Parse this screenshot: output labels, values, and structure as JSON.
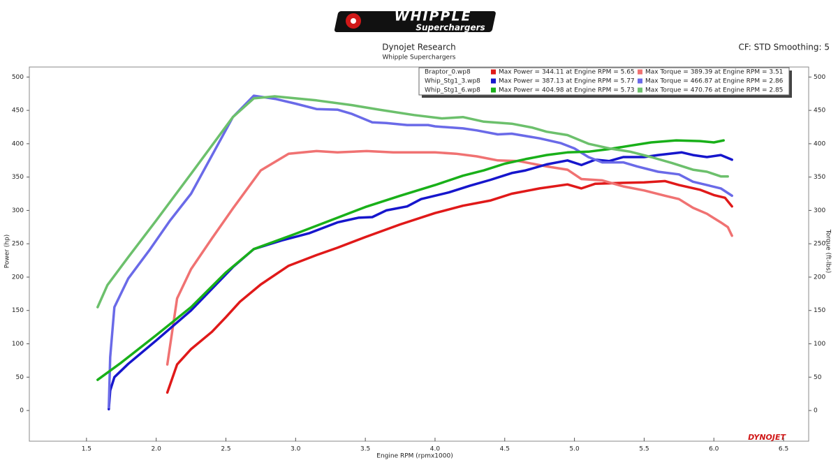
{
  "chart_data": {
    "type": "line",
    "brand": "WHIPPLE",
    "brand_sub": "Superchargers",
    "title": "Dynojet Research",
    "subtitle": "Whipple Superchargers",
    "corner_note": "CF: STD Smoothing: 5",
    "watermark": "DYNOJET",
    "x_label": "Engine RPM (rpmx1000)",
    "y_label": "Power (hp)",
    "y2_label": "Torque (ft-lbs)",
    "xlim": [
      1.09,
      6.68
    ],
    "ylim": [
      -46,
      515
    ],
    "y2lim": [
      -46,
      515
    ],
    "xticks": [
      1.5,
      {
        "value": 2,
        "label": "2.0"
      },
      2.5,
      {
        "value": 3,
        "label": "3.0"
      },
      3.5,
      {
        "value": 4,
        "label": "4.0"
      },
      4.5,
      {
        "value": 5,
        "label": "5.0"
      },
      5.5,
      {
        "value": 6,
        "label": "6.0"
      },
      6.5
    ],
    "yticks": [
      0,
      50,
      100,
      150,
      200,
      250,
      300,
      350,
      400,
      450,
      500
    ],
    "y2ticks": [
      0,
      50,
      100,
      150,
      200,
      250,
      300,
      350,
      400,
      450,
      500
    ],
    "files": [
      "Braptor_0.wp8",
      "Whip_Stg1_3.wp8",
      "Whip_Stg1_6.wp8"
    ],
    "series": [
      {
        "name": "Max Power = 344.11 at Engine RPM = 5.65",
        "color": "#e01919",
        "x": [
          2.08,
          2.15,
          2.25,
          2.4,
          2.5,
          2.6,
          2.75,
          2.95,
          3.15,
          3.3,
          3.5,
          3.75,
          4.0,
          4.2,
          4.4,
          4.55,
          4.75,
          4.95,
          5.05,
          5.15,
          5.3,
          5.5,
          5.65,
          5.75,
          5.9,
          6.0,
          6.08,
          6.13
        ],
        "values": [
          27,
          69,
          92,
          118,
          140,
          163,
          189,
          217,
          233,
          244,
          260,
          279,
          296,
          307,
          315,
          325,
          333,
          339,
          333,
          340,
          341,
          342,
          344,
          338,
          331,
          323,
          319,
          306
        ]
      },
      {
        "name": "Max Torque = 389.39 at Engine RPM = 3.51",
        "color": "#f07272",
        "axis": "y2",
        "x": [
          2.08,
          2.15,
          2.25,
          2.4,
          2.55,
          2.75,
          2.95,
          3.15,
          3.3,
          3.51,
          3.7,
          4.0,
          4.15,
          4.3,
          4.45,
          4.6,
          4.8,
          4.95,
          5.05,
          5.2,
          5.35,
          5.5,
          5.65,
          5.75,
          5.85,
          5.95,
          6.05,
          6.1,
          6.13
        ],
        "values": [
          69,
          168,
          212,
          258,
          303,
          360,
          385,
          389,
          387,
          389,
          387,
          387,
          385,
          381,
          375,
          374,
          366,
          361,
          347,
          345,
          336,
          330,
          322,
          317,
          304,
          295,
          282,
          275,
          262
        ]
      },
      {
        "name": "Max Power = 387.13 at Engine RPM = 5.77",
        "color": "#1616cc",
        "x": [
          1.66,
          1.67,
          1.7,
          1.8,
          2.0,
          2.25,
          2.55,
          2.7,
          2.9,
          3.1,
          3.3,
          3.45,
          3.55,
          3.65,
          3.8,
          3.9,
          4.1,
          4.25,
          4.4,
          4.55,
          4.65,
          4.8,
          4.95,
          5.05,
          5.15,
          5.25,
          5.35,
          5.5,
          5.6,
          5.77,
          5.85,
          5.95,
          6.05,
          6.13
        ],
        "values": [
          2,
          30,
          50,
          70,
          105,
          150,
          215,
          242,
          255,
          266,
          282,
          289,
          290,
          300,
          306,
          317,
          327,
          337,
          346,
          356,
          360,
          369,
          375,
          368,
          376,
          374,
          380,
          380,
          383,
          387,
          383,
          380,
          383,
          376
        ]
      },
      {
        "name": "Max Torque = 466.87 at Engine RPM = 2.86",
        "color": "#6a6ae8",
        "axis": "y2",
        "x": [
          1.66,
          1.67,
          1.7,
          1.8,
          1.95,
          2.1,
          2.25,
          2.55,
          2.7,
          2.86,
          3.0,
          3.15,
          3.3,
          3.4,
          3.55,
          3.65,
          3.8,
          3.95,
          4.0,
          4.2,
          4.3,
          4.45,
          4.55,
          4.75,
          4.9,
          5.0,
          5.1,
          5.2,
          5.35,
          5.45,
          5.6,
          5.75,
          5.85,
          5.95,
          6.05,
          6.13
        ],
        "values": [
          5,
          80,
          155,
          198,
          240,
          285,
          325,
          440,
          472,
          467,
          460,
          452,
          451,
          445,
          432,
          431,
          428,
          428,
          426,
          423,
          420,
          414,
          415,
          408,
          401,
          393,
          380,
          372,
          372,
          366,
          358,
          354,
          343,
          338,
          333,
          322
        ]
      },
      {
        "name": "Max Power = 404.98 at Engine RPM = 5.73",
        "color": "#19b019",
        "x": [
          1.58,
          1.75,
          2.0,
          2.25,
          2.5,
          2.7,
          3.0,
          3.25,
          3.5,
          3.75,
          4.0,
          4.2,
          4.35,
          4.5,
          4.65,
          4.8,
          4.95,
          5.1,
          5.25,
          5.4,
          5.55,
          5.73,
          5.9,
          6.0,
          6.07
        ],
        "values": [
          46,
          72,
          113,
          155,
          207,
          242,
          265,
          285,
          305,
          322,
          338,
          352,
          360,
          370,
          377,
          383,
          387,
          388,
          392,
          397,
          402,
          405,
          404,
          402,
          405
        ]
      },
      {
        "name": "Max Torque = 470.76 at Engine RPM = 2.85",
        "color": "#6cc06c",
        "axis": "y2",
        "x": [
          1.58,
          1.65,
          1.8,
          2.0,
          2.25,
          2.55,
          2.7,
          2.85,
          3.15,
          3.4,
          3.6,
          3.85,
          4.05,
          4.2,
          4.35,
          4.55,
          4.7,
          4.8,
          4.95,
          5.1,
          5.25,
          5.4,
          5.55,
          5.7,
          5.85,
          5.95,
          6.05,
          6.1
        ],
        "values": [
          155,
          188,
          230,
          285,
          355,
          440,
          468,
          471,
          465,
          458,
          451,
          443,
          438,
          440,
          433,
          430,
          424,
          418,
          413,
          400,
          393,
          388,
          380,
          371,
          361,
          358,
          351,
          351
        ]
      }
    ]
  }
}
